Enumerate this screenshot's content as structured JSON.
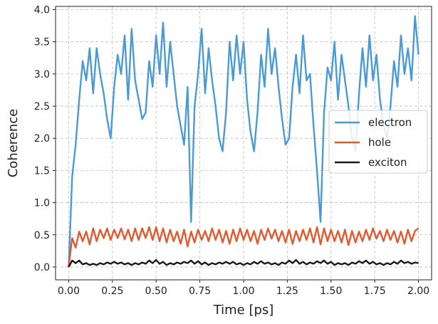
{
  "chart_data": {
    "type": "line",
    "title": "",
    "xlabel": "Time [ps]",
    "ylabel": "Coherence",
    "xlim": [
      -0.075,
      2.075
    ],
    "ylim": [
      -0.2,
      4.05
    ],
    "xticks": [
      0.0,
      0.25,
      0.5,
      0.75,
      1.0,
      1.25,
      1.5,
      1.75,
      2.0
    ],
    "xtick_labels": [
      "0.00",
      "0.25",
      "0.50",
      "0.75",
      "1.00",
      "1.25",
      "1.50",
      "1.75",
      "2.00"
    ],
    "yticks": [
      0.0,
      0.5,
      1.0,
      1.5,
      2.0,
      2.5,
      3.0,
      3.5,
      4.0
    ],
    "ytick_labels": [
      "0.0",
      "0.5",
      "1.0",
      "1.5",
      "2.0",
      "2.5",
      "3.0",
      "3.5",
      "4.0"
    ],
    "grid": true,
    "legend_position": "center-right",
    "series": [
      {
        "name": "electron",
        "color": "#4a9ad4",
        "x": [
          0.0,
          0.02,
          0.04,
          0.06,
          0.08,
          0.1,
          0.12,
          0.14,
          0.16,
          0.18,
          0.2,
          0.22,
          0.24,
          0.26,
          0.28,
          0.3,
          0.32,
          0.34,
          0.36,
          0.38,
          0.4,
          0.42,
          0.44,
          0.46,
          0.48,
          0.5,
          0.52,
          0.54,
          0.56,
          0.58,
          0.6,
          0.62,
          0.64,
          0.66,
          0.68,
          0.7,
          0.72,
          0.74,
          0.76,
          0.78,
          0.8,
          0.82,
          0.84,
          0.86,
          0.88,
          0.9,
          0.92,
          0.94,
          0.96,
          0.98,
          1.0,
          1.02,
          1.04,
          1.06,
          1.08,
          1.1,
          1.12,
          1.14,
          1.16,
          1.18,
          1.2,
          1.22,
          1.24,
          1.26,
          1.28,
          1.3,
          1.32,
          1.34,
          1.36,
          1.38,
          1.4,
          1.42,
          1.44,
          1.46,
          1.48,
          1.5,
          1.52,
          1.54,
          1.56,
          1.58,
          1.6,
          1.62,
          1.64,
          1.66,
          1.68,
          1.7,
          1.72,
          1.74,
          1.76,
          1.78,
          1.8,
          1.82,
          1.84,
          1.86,
          1.88,
          1.9,
          1.92,
          1.94,
          1.96,
          1.98,
          2.0
        ],
        "values": [
          0.0,
          1.4,
          1.9,
          2.6,
          3.2,
          2.9,
          3.4,
          2.7,
          3.4,
          3.0,
          2.7,
          2.3,
          2.0,
          2.8,
          3.3,
          3.0,
          3.6,
          2.6,
          3.7,
          2.9,
          2.6,
          2.3,
          2.4,
          3.2,
          2.8,
          3.6,
          3.0,
          3.8,
          2.8,
          3.5,
          3.0,
          2.5,
          2.2,
          1.9,
          2.8,
          0.7,
          2.5,
          3.0,
          3.7,
          2.7,
          3.4,
          2.9,
          2.5,
          2.0,
          1.8,
          2.4,
          3.5,
          2.9,
          3.6,
          3.0,
          3.5,
          2.6,
          2.1,
          1.8,
          2.4,
          3.3,
          2.8,
          3.7,
          3.0,
          3.4,
          2.8,
          2.3,
          1.9,
          2.0,
          2.8,
          3.3,
          2.7,
          3.6,
          2.9,
          3.0,
          2.2,
          1.5,
          0.7,
          2.4,
          3.1,
          2.9,
          3.5,
          2.6,
          3.3,
          2.9,
          2.5,
          2.0,
          1.8,
          2.7,
          3.4,
          2.8,
          3.6,
          2.9,
          3.3,
          2.6,
          2.2,
          2.0,
          2.5,
          3.2,
          2.8,
          3.6,
          3.0,
          3.4,
          2.9,
          3.9,
          3.3
        ]
      },
      {
        "name": "hole",
        "color": "#e05b2f",
        "x": [
          0.0,
          0.02,
          0.04,
          0.06,
          0.08,
          0.1,
          0.12,
          0.14,
          0.16,
          0.18,
          0.2,
          0.22,
          0.24,
          0.26,
          0.28,
          0.3,
          0.32,
          0.34,
          0.36,
          0.38,
          0.4,
          0.42,
          0.44,
          0.46,
          0.48,
          0.5,
          0.52,
          0.54,
          0.56,
          0.58,
          0.6,
          0.62,
          0.64,
          0.66,
          0.68,
          0.7,
          0.72,
          0.74,
          0.76,
          0.78,
          0.8,
          0.82,
          0.84,
          0.86,
          0.88,
          0.9,
          0.92,
          0.94,
          0.96,
          0.98,
          1.0,
          1.02,
          1.04,
          1.06,
          1.08,
          1.1,
          1.12,
          1.14,
          1.16,
          1.18,
          1.2,
          1.22,
          1.24,
          1.26,
          1.28,
          1.3,
          1.32,
          1.34,
          1.36,
          1.38,
          1.4,
          1.42,
          1.44,
          1.46,
          1.48,
          1.5,
          1.52,
          1.54,
          1.56,
          1.58,
          1.6,
          1.62,
          1.64,
          1.66,
          1.68,
          1.7,
          1.72,
          1.74,
          1.76,
          1.78,
          1.8,
          1.82,
          1.84,
          1.86,
          1.88,
          1.9,
          1.92,
          1.94,
          1.96,
          1.98,
          2.0
        ],
        "values": [
          0.0,
          0.45,
          0.3,
          0.55,
          0.4,
          0.55,
          0.35,
          0.6,
          0.4,
          0.58,
          0.45,
          0.6,
          0.42,
          0.58,
          0.45,
          0.6,
          0.43,
          0.58,
          0.4,
          0.6,
          0.42,
          0.6,
          0.45,
          0.62,
          0.42,
          0.62,
          0.4,
          0.6,
          0.38,
          0.58,
          0.4,
          0.55,
          0.36,
          0.58,
          0.32,
          0.55,
          0.38,
          0.58,
          0.42,
          0.56,
          0.4,
          0.6,
          0.42,
          0.58,
          0.38,
          0.56,
          0.36,
          0.58,
          0.4,
          0.6,
          0.42,
          0.58,
          0.4,
          0.56,
          0.36,
          0.58,
          0.42,
          0.6,
          0.44,
          0.58,
          0.4,
          0.56,
          0.38,
          0.58,
          0.36,
          0.56,
          0.4,
          0.58,
          0.42,
          0.6,
          0.38,
          0.62,
          0.35,
          0.6,
          0.4,
          0.58,
          0.4,
          0.56,
          0.38,
          0.58,
          0.34,
          0.56,
          0.38,
          0.55,
          0.4,
          0.58,
          0.42,
          0.6,
          0.44,
          0.56,
          0.4,
          0.58,
          0.42,
          0.56,
          0.38,
          0.55,
          0.36,
          0.58,
          0.4,
          0.56,
          0.6
        ]
      },
      {
        "name": "exciton",
        "color": "#1a1a1a",
        "x": [
          0.0,
          0.02,
          0.04,
          0.06,
          0.08,
          0.1,
          0.12,
          0.14,
          0.16,
          0.18,
          0.2,
          0.22,
          0.24,
          0.26,
          0.28,
          0.3,
          0.32,
          0.34,
          0.36,
          0.38,
          0.4,
          0.42,
          0.44,
          0.46,
          0.48,
          0.5,
          0.52,
          0.54,
          0.56,
          0.58,
          0.6,
          0.62,
          0.64,
          0.66,
          0.68,
          0.7,
          0.72,
          0.74,
          0.76,
          0.78,
          0.8,
          0.82,
          0.84,
          0.86,
          0.88,
          0.9,
          0.92,
          0.94,
          0.96,
          0.98,
          1.0,
          1.02,
          1.04,
          1.06,
          1.08,
          1.1,
          1.12,
          1.14,
          1.16,
          1.18,
          1.2,
          1.22,
          1.24,
          1.26,
          1.28,
          1.3,
          1.32,
          1.34,
          1.36,
          1.38,
          1.4,
          1.42,
          1.44,
          1.46,
          1.48,
          1.5,
          1.52,
          1.54,
          1.56,
          1.58,
          1.6,
          1.62,
          1.64,
          1.66,
          1.68,
          1.7,
          1.72,
          1.74,
          1.76,
          1.78,
          1.8,
          1.82,
          1.84,
          1.86,
          1.88,
          1.9,
          1.92,
          1.94,
          1.96,
          1.98,
          2.0
        ],
        "values": [
          0.0,
          0.1,
          0.06,
          0.1,
          0.04,
          0.06,
          0.03,
          0.05,
          0.03,
          0.06,
          0.04,
          0.07,
          0.05,
          0.08,
          0.05,
          0.07,
          0.04,
          0.06,
          0.03,
          0.06,
          0.04,
          0.07,
          0.05,
          0.1,
          0.06,
          0.11,
          0.05,
          0.08,
          0.03,
          0.06,
          0.04,
          0.07,
          0.05,
          0.08,
          0.06,
          0.1,
          0.05,
          0.09,
          0.04,
          0.07,
          0.03,
          0.06,
          0.04,
          0.07,
          0.05,
          0.08,
          0.05,
          0.08,
          0.04,
          0.06,
          0.03,
          0.06,
          0.04,
          0.08,
          0.05,
          0.09,
          0.05,
          0.07,
          0.04,
          0.06,
          0.03,
          0.07,
          0.05,
          0.1,
          0.06,
          0.11,
          0.05,
          0.08,
          0.04,
          0.07,
          0.05,
          0.09,
          0.06,
          0.1,
          0.05,
          0.08,
          0.03,
          0.06,
          0.04,
          0.06,
          0.03,
          0.07,
          0.05,
          0.09,
          0.06,
          0.1,
          0.05,
          0.08,
          0.04,
          0.06,
          0.03,
          0.06,
          0.04,
          0.08,
          0.05,
          0.1,
          0.06,
          0.08,
          0.05,
          0.07,
          0.06
        ]
      }
    ]
  }
}
